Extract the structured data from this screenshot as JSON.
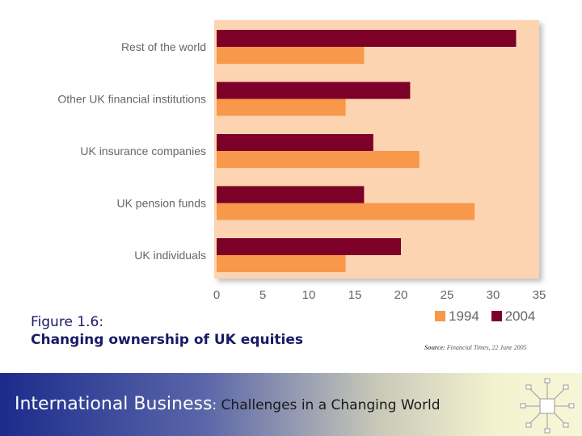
{
  "chart_data": {
    "type": "bar",
    "orientation": "horizontal",
    "categories": [
      "Rest of the world",
      "Other UK financial institutions",
      "UK insurance companies",
      "UK pension funds",
      "UK individuals"
    ],
    "series": [
      {
        "name": "2004",
        "values": [
          32.5,
          21,
          17,
          16,
          20
        ]
      },
      {
        "name": "1994",
        "values": [
          16,
          14,
          22,
          28,
          14
        ]
      }
    ],
    "xticks": [
      "0",
      "5",
      "10",
      "15",
      "20",
      "25",
      "30",
      "35"
    ],
    "xlim": [
      0,
      35
    ],
    "legend_position": "bottom-right",
    "grid": false
  },
  "colors": {
    "series_2004": "#7d0028",
    "series_1994": "#f7984a",
    "plot_background": "#fcd4b2"
  },
  "caption": {
    "line1": "Figure 1.6:",
    "line2": "Changing ownership of UK equities"
  },
  "source": {
    "label": "Source:",
    "text": "Financial Times, 22 June 2005"
  },
  "footer": {
    "title_main": "International Business",
    "title_colon": ":",
    "title_rest": " Challenges in a Changing World",
    "logo_icon": "network-globe-icon"
  }
}
